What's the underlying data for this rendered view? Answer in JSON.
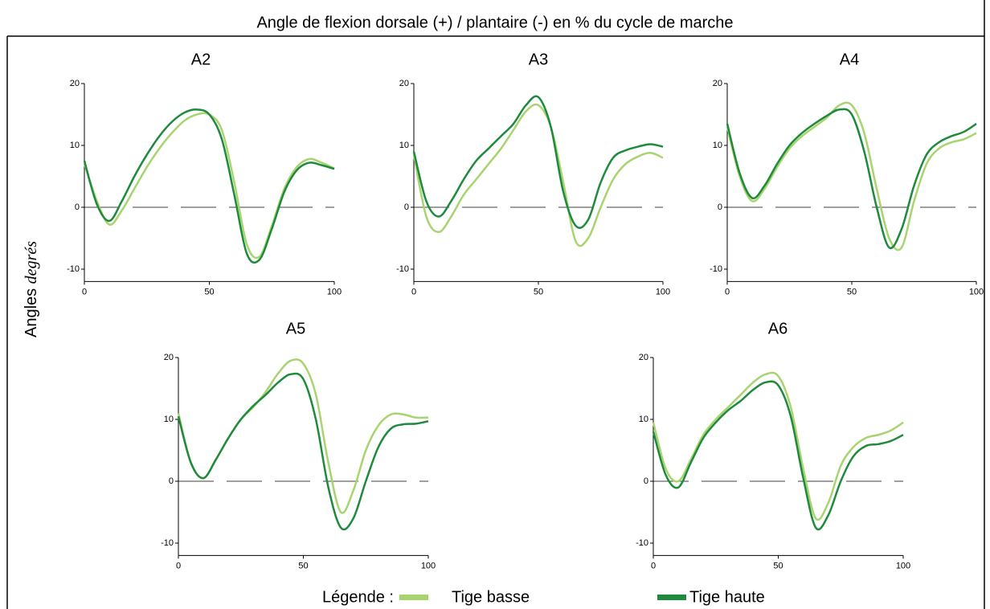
{
  "title": "Angle de flexion dorsale (+) / plantaire (-) en % du cycle de marche",
  "ylabel": "Angles",
  "yunit": "degrés",
  "legend_label": "Légende :",
  "chart_data": [
    {
      "type": "line",
      "title": "A2",
      "x": [
        0,
        5,
        10,
        15,
        20,
        25,
        30,
        35,
        40,
        45,
        50,
        55,
        60,
        65,
        70,
        75,
        80,
        85,
        90,
        95,
        100
      ],
      "xlim": [
        0,
        100
      ],
      "xticks": [
        0,
        50,
        100
      ],
      "ylim": [
        -12,
        20
      ],
      "yticks": [
        -10,
        0,
        10,
        20
      ],
      "series": [
        {
          "name": "Tige basse",
          "color": "#a8d46f",
          "values": [
            7,
            1,
            -2.8,
            -0.5,
            3,
            6.5,
            9.5,
            12,
            14,
            15,
            15,
            12.5,
            4,
            -6,
            -8,
            -3,
            3,
            6.5,
            7.8,
            7.2,
            6.3
          ]
        },
        {
          "name": "Tige haute",
          "color": "#1e8a3c",
          "values": [
            7.5,
            0.5,
            -2.2,
            1,
            5,
            8.5,
            11.5,
            13.8,
            15.3,
            15.8,
            15,
            11,
            2,
            -7.5,
            -8.5,
            -3.5,
            2.5,
            6,
            7.2,
            6.8,
            6.2
          ]
        }
      ]
    },
    {
      "type": "line",
      "title": "A3",
      "x": [
        0,
        5,
        10,
        15,
        20,
        25,
        30,
        35,
        40,
        45,
        50,
        55,
        60,
        65,
        70,
        75,
        80,
        85,
        90,
        95,
        100
      ],
      "xlim": [
        0,
        100
      ],
      "xticks": [
        0,
        50,
        100
      ],
      "ylim": [
        -12,
        20
      ],
      "yticks": [
        -10,
        0,
        10,
        20
      ],
      "series": [
        {
          "name": "Tige basse",
          "color": "#a8d46f",
          "values": [
            8.5,
            -1.5,
            -4,
            -1.5,
            2,
            4.5,
            7,
            9.5,
            12.5,
            15.5,
            16.5,
            13,
            4,
            -5.5,
            -5,
            0,
            4.5,
            7,
            8.2,
            8.8,
            8
          ]
        },
        {
          "name": "Tige haute",
          "color": "#1e8a3c",
          "values": [
            9,
            1,
            -1.5,
            1,
            4.5,
            7.5,
            9.5,
            11.5,
            13.5,
            16.5,
            17.8,
            13,
            2.5,
            -3,
            -2,
            4,
            8,
            9.2,
            9.8,
            10.2,
            9.8
          ]
        }
      ]
    },
    {
      "type": "line",
      "title": "A4",
      "x": [
        0,
        5,
        10,
        15,
        20,
        25,
        30,
        35,
        40,
        45,
        50,
        55,
        60,
        65,
        70,
        75,
        80,
        85,
        90,
        95,
        100
      ],
      "xlim": [
        0,
        100
      ],
      "xticks": [
        0,
        50,
        100
      ],
      "ylim": [
        -12,
        20
      ],
      "yticks": [
        -10,
        0,
        10,
        20
      ],
      "series": [
        {
          "name": "Tige basse",
          "color": "#a8d46f",
          "values": [
            13,
            5,
            1,
            3,
            6.5,
            9.5,
            11.5,
            13,
            14.5,
            16.5,
            16.5,
            12,
            3,
            -5,
            -6.5,
            1,
            7,
            9.5,
            10.5,
            11,
            12
          ]
        },
        {
          "name": "Tige haute",
          "color": "#1e8a3c",
          "values": [
            13.5,
            5.5,
            1.5,
            3.5,
            7,
            10,
            12,
            13.5,
            14.8,
            15.8,
            15,
            9,
            0,
            -6.5,
            -3.5,
            3.5,
            8.5,
            10.5,
            11.5,
            12.2,
            13.5
          ]
        }
      ]
    },
    {
      "type": "line",
      "title": "A5",
      "x": [
        0,
        5,
        10,
        15,
        20,
        25,
        30,
        35,
        40,
        45,
        50,
        55,
        60,
        65,
        70,
        75,
        80,
        85,
        90,
        95,
        100
      ],
      "xlim": [
        0,
        100
      ],
      "xticks": [
        0,
        50,
        100
      ],
      "ylim": [
        -12,
        20
      ],
      "yticks": [
        -10,
        0,
        10,
        20
      ],
      "series": [
        {
          "name": "Tige basse",
          "color": "#a8d46f",
          "values": [
            11,
            3,
            0.5,
            3.5,
            7,
            10,
            12,
            14.5,
            17.5,
            19.5,
            19,
            14,
            3,
            -5,
            -1.5,
            5,
            9,
            10.8,
            10.8,
            10.3,
            10.3
          ]
        },
        {
          "name": "Tige haute",
          "color": "#1e8a3c",
          "values": [
            10.5,
            3,
            0.5,
            3.5,
            7,
            10,
            12.2,
            14,
            16,
            17.3,
            16.5,
            10,
            -1,
            -7.5,
            -6,
            0,
            5.5,
            8.5,
            9.2,
            9.3,
            9.7
          ]
        }
      ]
    },
    {
      "type": "line",
      "title": "A6",
      "x": [
        0,
        5,
        10,
        15,
        20,
        25,
        30,
        35,
        40,
        45,
        50,
        55,
        60,
        65,
        70,
        75,
        80,
        85,
        90,
        95,
        100
      ],
      "xlim": [
        0,
        100
      ],
      "xticks": [
        0,
        50,
        100
      ],
      "ylim": [
        -12,
        20
      ],
      "yticks": [
        -10,
        0,
        10,
        20
      ],
      "series": [
        {
          "name": "Tige basse",
          "color": "#a8d46f",
          "values": [
            9.5,
            2,
            0,
            3.5,
            7.5,
            10,
            12,
            14,
            16,
            17.3,
            17,
            12,
            2,
            -6,
            -3.5,
            2.5,
            5.5,
            7,
            7.5,
            8.2,
            9.5
          ]
        },
        {
          "name": "Tige haute",
          "color": "#1e8a3c",
          "values": [
            8,
            1,
            -1,
            3,
            7,
            9.5,
            11.5,
            13,
            14.8,
            16,
            15.5,
            10.5,
            0.5,
            -7.5,
            -5.5,
            0,
            4,
            5.7,
            6,
            6.5,
            7.5
          ]
        }
      ]
    }
  ]
}
